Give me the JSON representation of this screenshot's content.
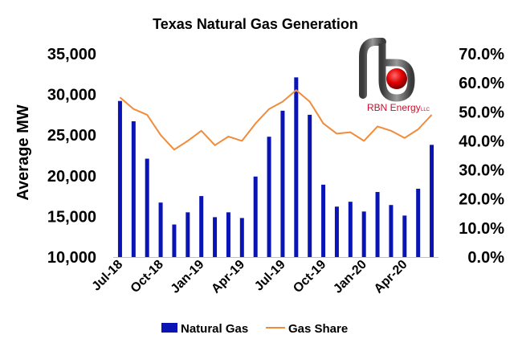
{
  "chart_data": {
    "type": "bar",
    "title": "Texas Natural Gas Generation",
    "ylabel": "Average MW",
    "y2label": "",
    "ylim": [
      10000,
      35000
    ],
    "y2lim": [
      0,
      0.7
    ],
    "y_ticks": [
      "10,000",
      "15,000",
      "20,000",
      "25,000",
      "30,000",
      "35,000"
    ],
    "y2_ticks": [
      "0.0%",
      "10.0%",
      "20.0%",
      "30.0%",
      "40.0%",
      "50.0%",
      "60.0%",
      "70.0%"
    ],
    "x_ticks": [
      "Jul-18",
      "Oct-18",
      "Jan-19",
      "Apr-19",
      "Jul-19",
      "Oct-19",
      "Jan-20",
      "Apr-20"
    ],
    "categories": [
      "Jul-18",
      "Aug-18",
      "Sep-18",
      "Oct-18",
      "Nov-18",
      "Dec-18",
      "Jan-19",
      "Feb-19",
      "Mar-19",
      "Apr-19",
      "May-19",
      "Jun-19",
      "Jul-19",
      "Aug-19",
      "Sep-19",
      "Oct-19",
      "Nov-19",
      "Dec-19",
      "Jan-20",
      "Feb-20",
      "Mar-20",
      "Apr-20",
      "May-20",
      "Jun-20"
    ],
    "series": [
      {
        "name": "Natural Gas",
        "type": "bar",
        "axis": "left",
        "color": "#0a14b4",
        "values": [
          29200,
          26700,
          22100,
          16700,
          14000,
          15500,
          17500,
          14900,
          15500,
          14800,
          19900,
          24800,
          28000,
          32100,
          27500,
          18900,
          16200,
          16800,
          15600,
          18000,
          16400,
          15100,
          18400,
          23800
        ]
      },
      {
        "name": "Gas Share",
        "type": "line",
        "axis": "right",
        "color": "#f08c3c",
        "values": [
          0.55,
          0.51,
          0.49,
          0.42,
          0.37,
          0.4,
          0.435,
          0.385,
          0.415,
          0.4,
          0.46,
          0.51,
          0.535,
          0.575,
          0.535,
          0.46,
          0.425,
          0.43,
          0.4,
          0.45,
          0.435,
          0.41,
          0.44,
          0.49
        ]
      }
    ],
    "legend_position": "bottom",
    "grid": false
  },
  "logo": {
    "text": "RBN Energy",
    "suffix": "LLC",
    "accent": "#e00000"
  }
}
